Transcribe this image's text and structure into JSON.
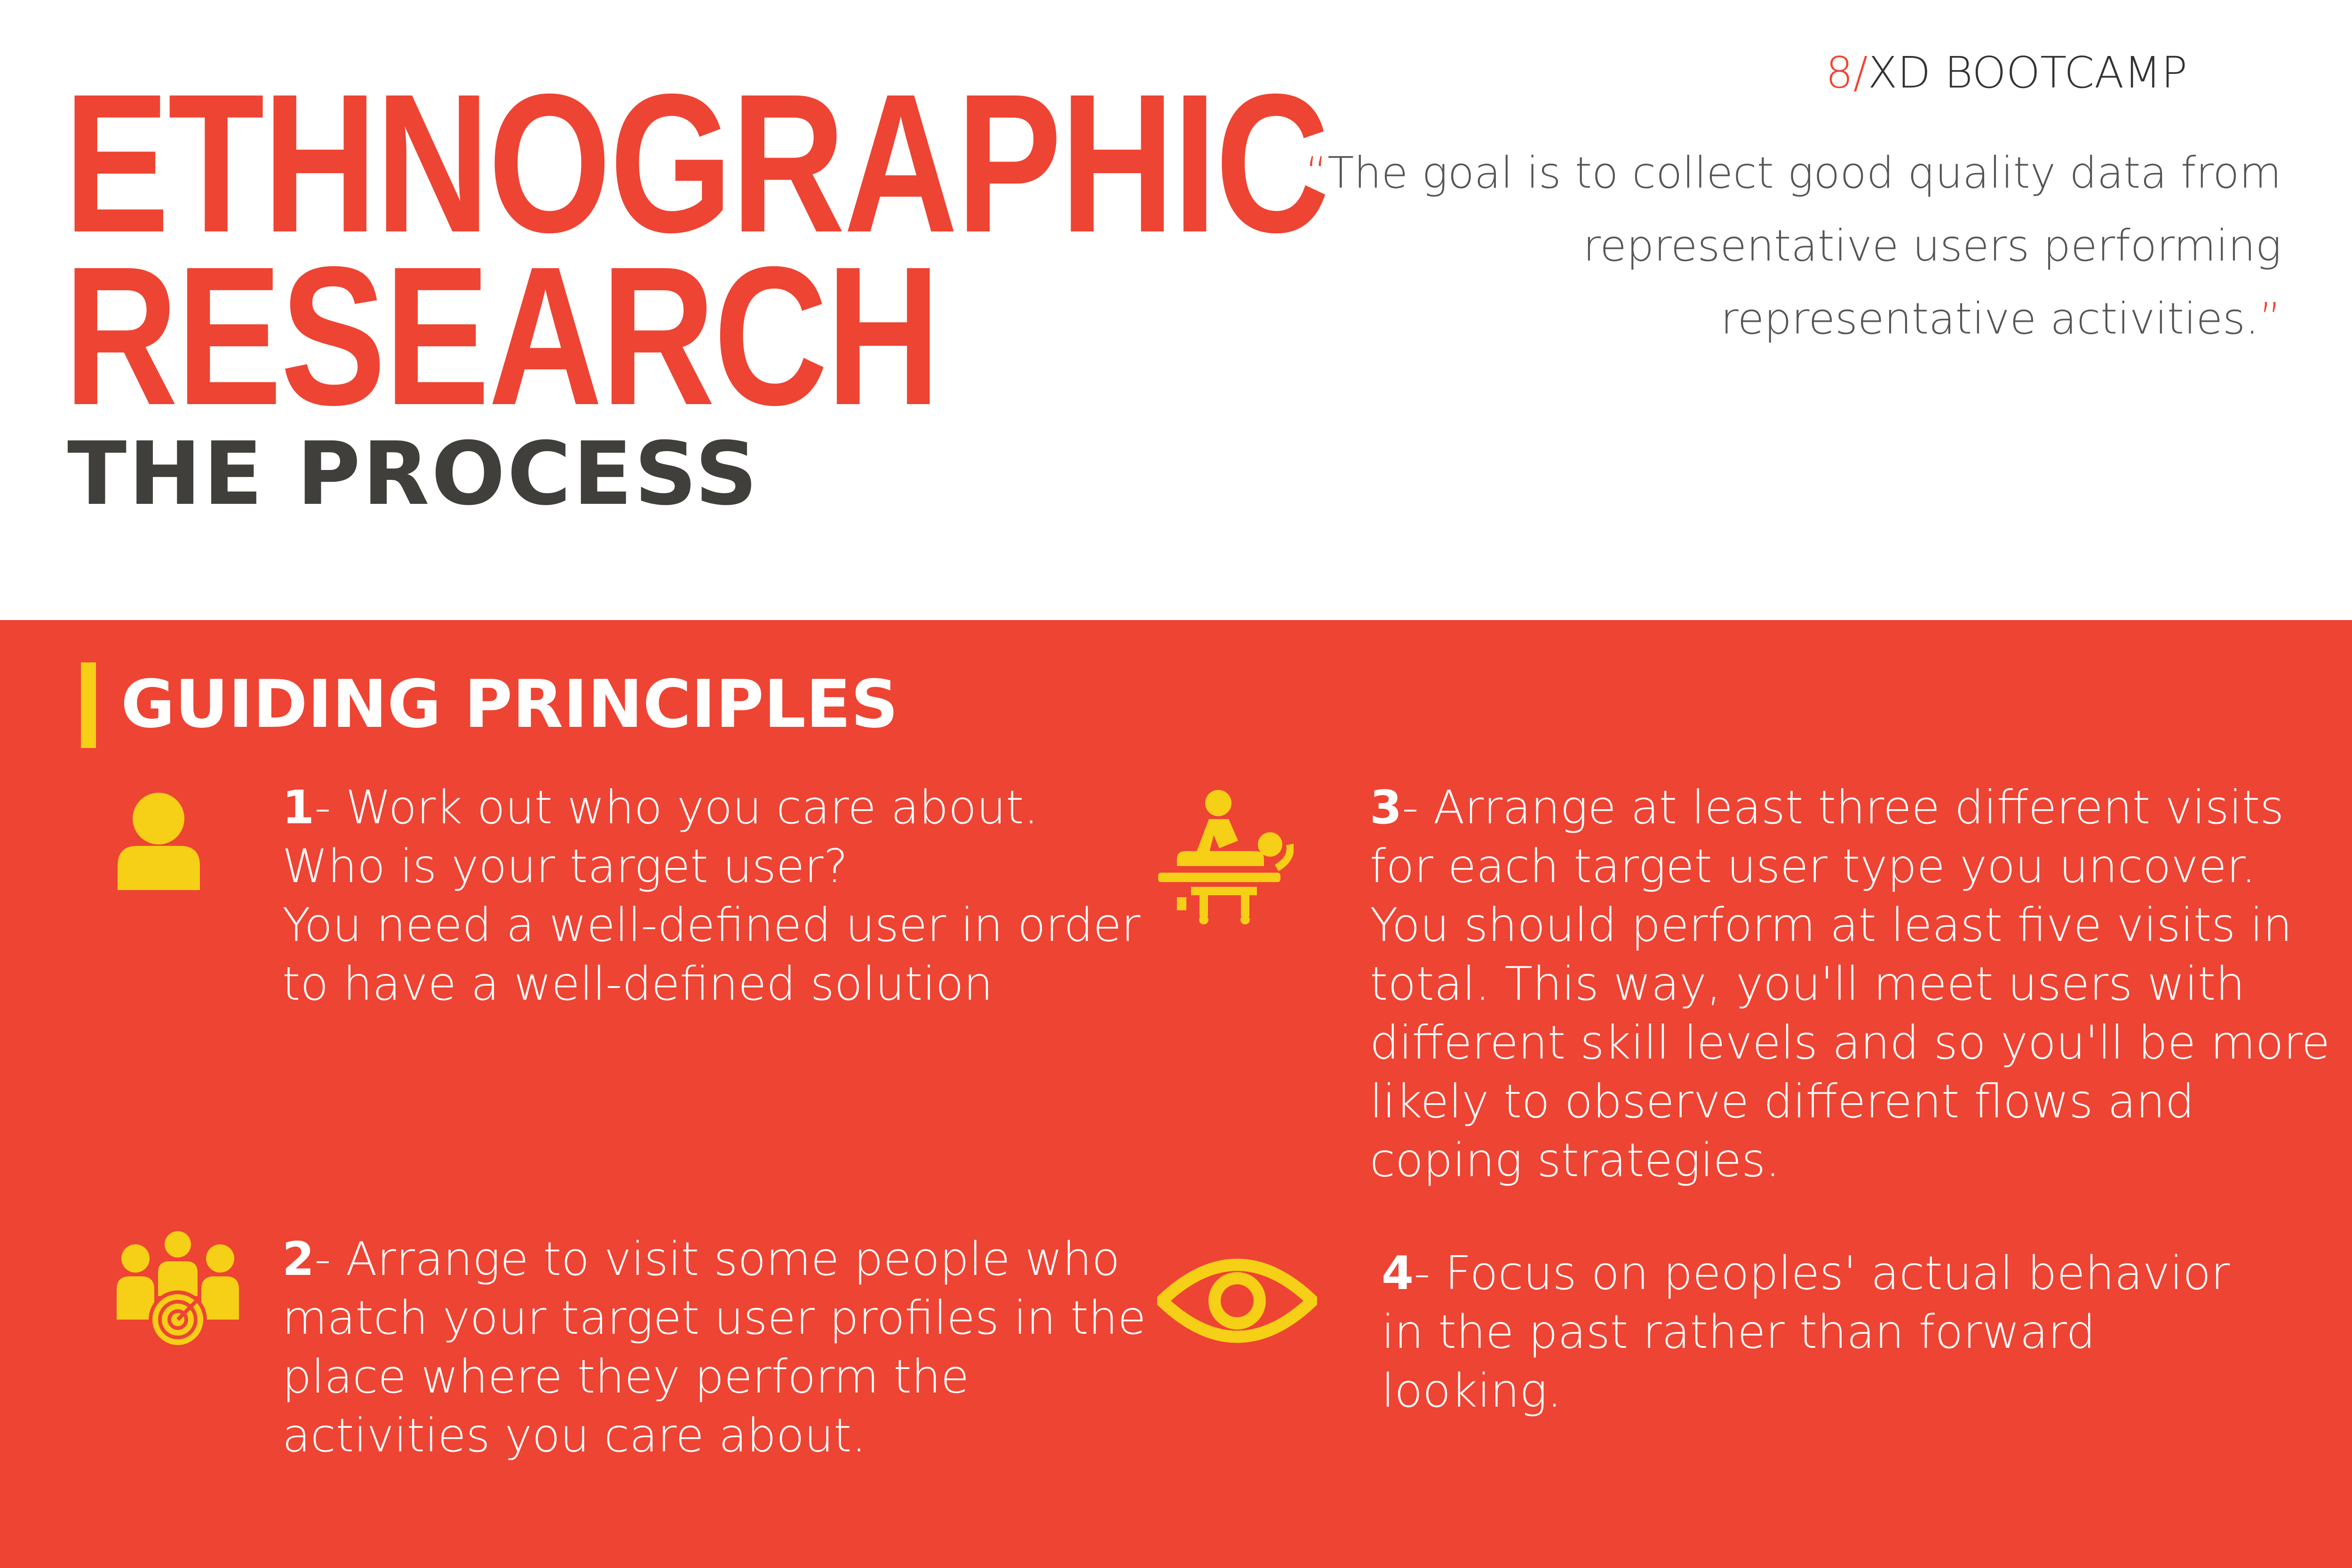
{
  "header": {
    "title_line1": "ETHNOGRAPHIC",
    "title_line2": "RESEARCH",
    "subtitle": "THE PROCESS"
  },
  "brand": {
    "number": "8",
    "slash": "/",
    "name": "XD BOOTCAMP"
  },
  "quote": {
    "open_mark": "“",
    "close_mark": "”",
    "lines": [
      "The goal is to collect good quality data from",
      "representative users performing",
      "representative activities."
    ]
  },
  "section": {
    "title": "GUIDING PRINCIPLES"
  },
  "principles": [
    {
      "number": "1",
      "icon": "user-icon",
      "lines": [
        "- Work out who you care about.",
        "Who is your target user?",
        "You need a well-defined user in order",
        "to have a well-defined solution"
      ]
    },
    {
      "number": "2",
      "icon": "target-group-icon",
      "lines": [
        "- Arrange to visit some people who",
        "match your target user profiles in the",
        "place where they perform the",
        "activities you care about."
      ]
    },
    {
      "number": "3",
      "icon": "massage-icon",
      "lines": [
        "- Arrange at least three different visits",
        "for each target user type you uncover.",
        "You should perform at least five visits in",
        "total. This way, you'll meet users with",
        "different skill levels and so you'll be more",
        "likely to observe different flows and",
        "coping strategies."
      ]
    },
    {
      "number": "4",
      "icon": "eye-icon",
      "lines": [
        "- Focus on peoples' actual behavior",
        "in the past rather than forward",
        "looking."
      ]
    }
  ],
  "colors": {
    "accent_red": "#ee4433",
    "icon_yellow": "#f6cf17",
    "title_dark": "#403f3b",
    "panel_text": "#ffffff"
  }
}
